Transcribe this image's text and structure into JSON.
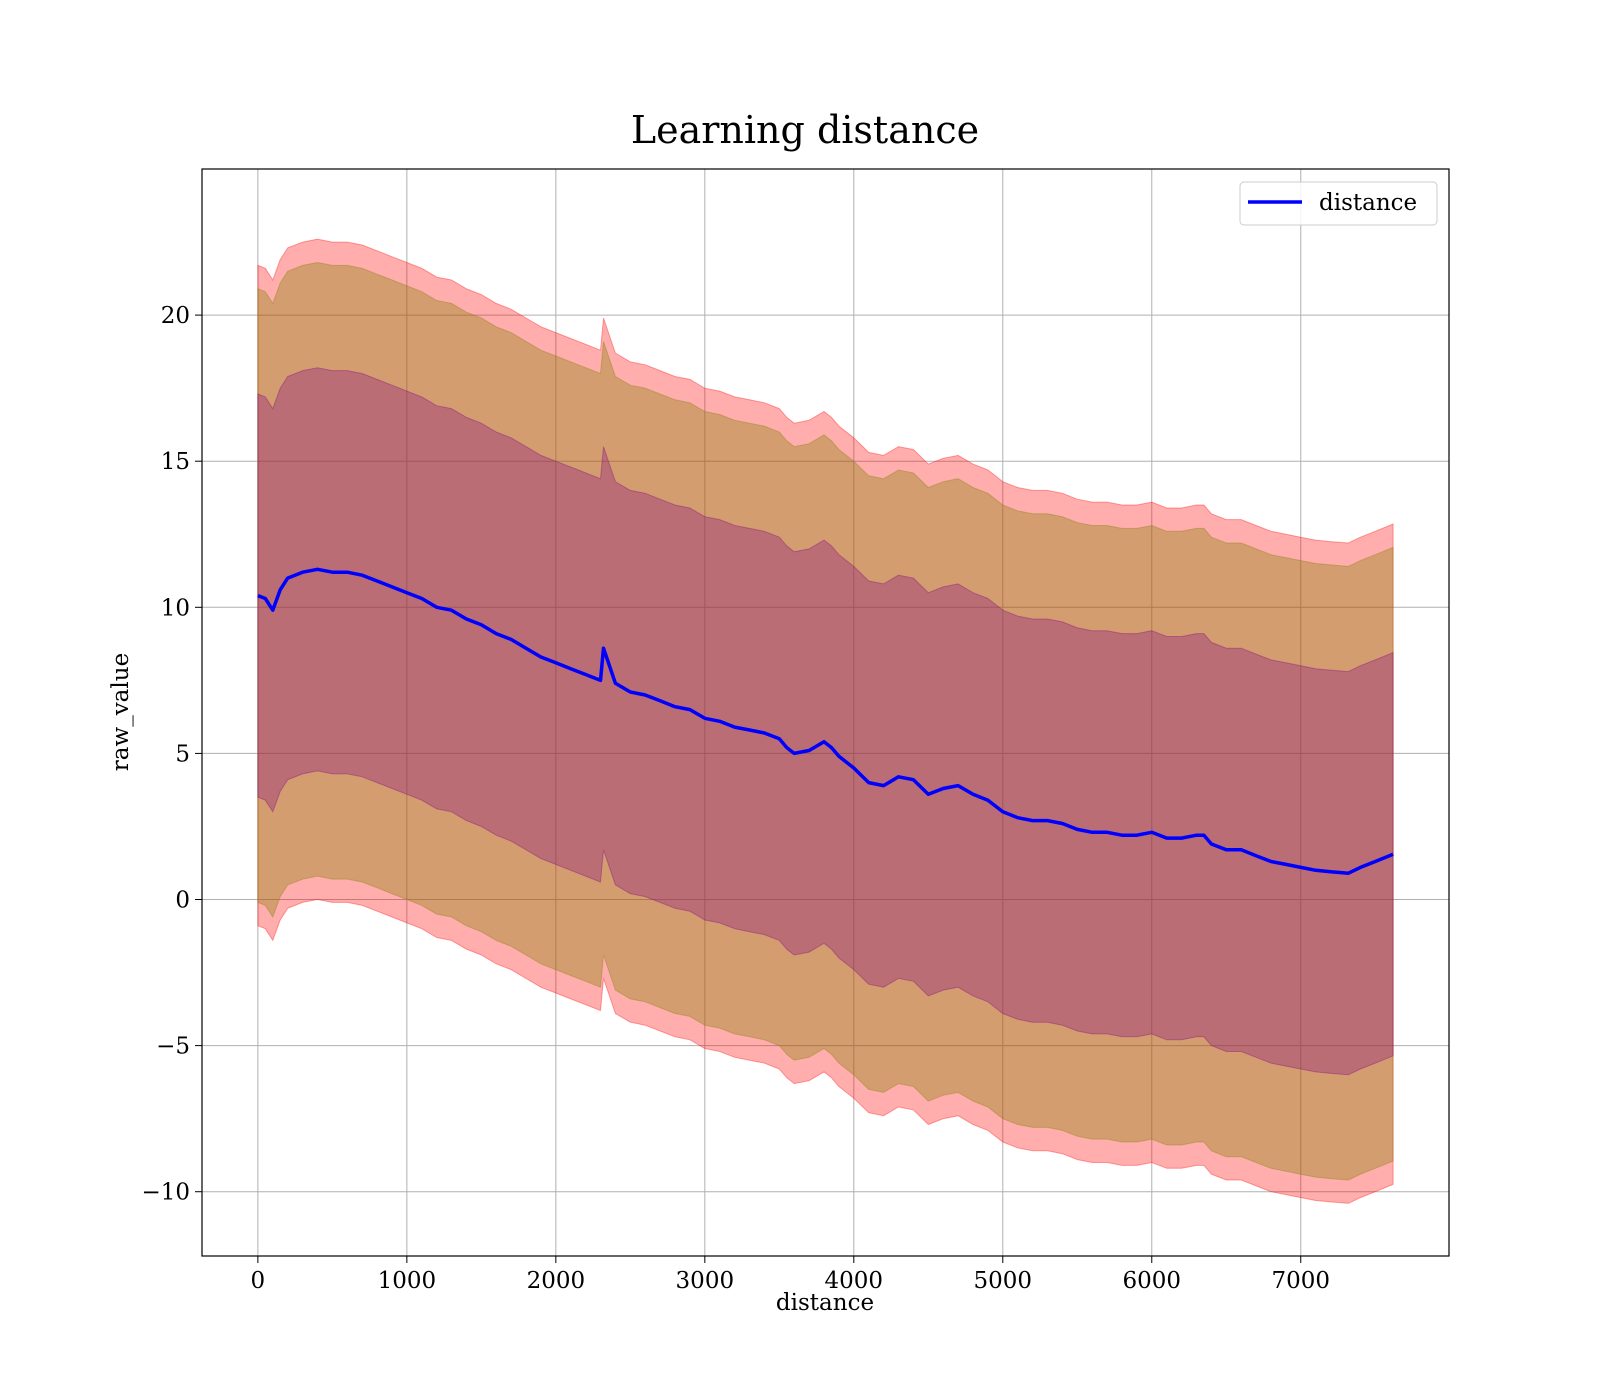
{
  "chart_data": {
    "type": "area",
    "title": "Learning distance",
    "xlabel": "distance",
    "ylabel": "raw_value",
    "xlim": [
      -375,
      7995
    ],
    "ylim": [
      -12.2,
      25
    ],
    "xticks": [
      0,
      1000,
      2000,
      3000,
      4000,
      5000,
      6000,
      7000
    ],
    "yticks": [
      -10,
      -5,
      0,
      5,
      10,
      15,
      20
    ],
    "ytick_labels": [
      "−10",
      "−5",
      "0",
      "5",
      "10",
      "15",
      "20"
    ],
    "grid": true,
    "legend": {
      "placement": "top-right",
      "entries": [
        {
          "name": "distance",
          "color": "#0000ff"
        }
      ]
    },
    "x": [
      0,
      50,
      100,
      150,
      200,
      300,
      400,
      500,
      600,
      700,
      800,
      900,
      1000,
      1100,
      1200,
      1300,
      1400,
      1500,
      1600,
      1700,
      1800,
      1900,
      2000,
      2100,
      2200,
      2300,
      2320,
      2400,
      2500,
      2600,
      2700,
      2800,
      2900,
      3000,
      3100,
      3200,
      3300,
      3400,
      3500,
      3550,
      3600,
      3700,
      3800,
      3850,
      3900,
      4000,
      4100,
      4200,
      4300,
      4400,
      4500,
      4600,
      4700,
      4800,
      4900,
      5000,
      5100,
      5200,
      5300,
      5400,
      5500,
      5600,
      5700,
      5800,
      5900,
      6000,
      6100,
      6200,
      6300,
      6350,
      6400,
      6500,
      6600,
      6700,
      6800,
      6900,
      7000,
      7100,
      7200,
      7320,
      7400,
      7500,
      7620
    ],
    "series": [
      {
        "name": "distance",
        "color": "#0000ff",
        "values": [
          10.4,
          10.3,
          9.9,
          10.6,
          11.0,
          11.2,
          11.3,
          11.2,
          11.2,
          11.1,
          10.9,
          10.7,
          10.5,
          10.3,
          10.0,
          9.9,
          9.6,
          9.4,
          9.1,
          8.9,
          8.6,
          8.3,
          8.1,
          7.9,
          7.7,
          7.5,
          8.6,
          7.4,
          7.1,
          7.0,
          6.8,
          6.6,
          6.5,
          6.2,
          6.1,
          5.9,
          5.8,
          5.7,
          5.5,
          5.2,
          5.0,
          5.1,
          5.4,
          5.2,
          4.9,
          4.5,
          4.0,
          3.9,
          4.2,
          4.1,
          3.6,
          3.8,
          3.9,
          3.6,
          3.4,
          3.0,
          2.8,
          2.7,
          2.7,
          2.6,
          2.4,
          2.3,
          2.3,
          2.2,
          2.2,
          2.3,
          2.1,
          2.1,
          2.2,
          2.2,
          1.9,
          1.7,
          1.7,
          1.5,
          1.3,
          1.2,
          1.1,
          1.0,
          0.95,
          0.9,
          1.1,
          1.3,
          1.55
        ]
      }
    ],
    "bands": [
      {
        "name": "",
        "color": "#ff0000",
        "opacity": 0.32,
        "offset": 11.3
      },
      {
        "name": "",
        "color": "#808000",
        "opacity": 0.35,
        "offset": 10.5
      },
      {
        "name": "",
        "color": "#800080",
        "opacity": 0.3,
        "offset": 6.9
      }
    ]
  }
}
